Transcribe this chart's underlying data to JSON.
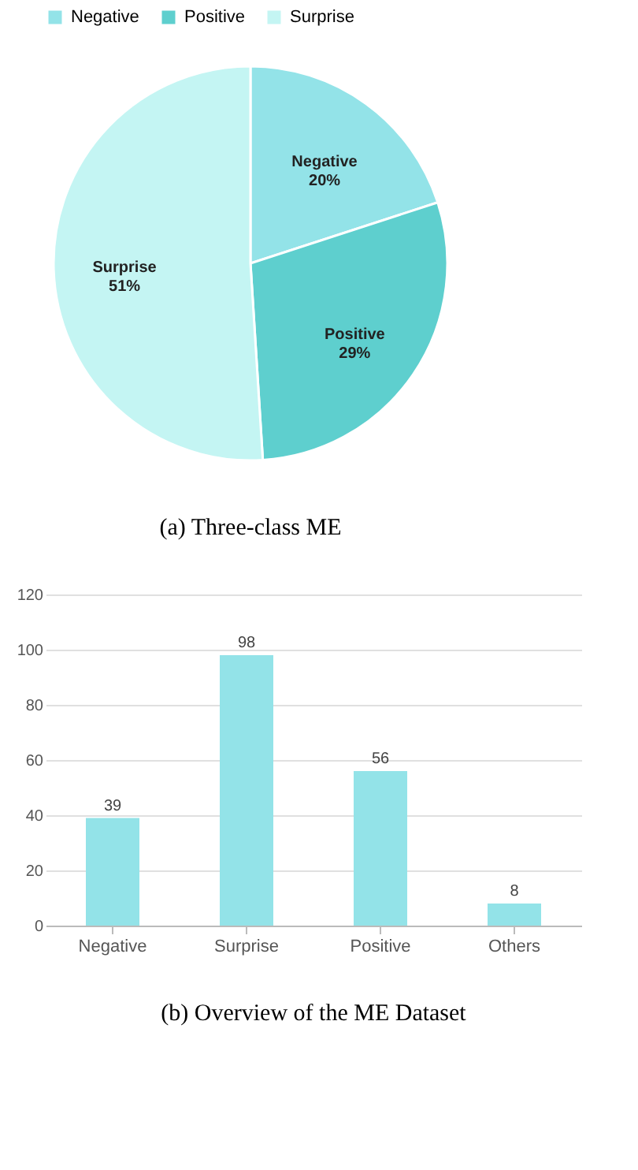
{
  "chart_data": [
    {
      "type": "pie",
      "title": "(a) Three-class ME",
      "categories": [
        "Negative",
        "Positive",
        "Surprise"
      ],
      "values": [
        20,
        29,
        51
      ],
      "colors": [
        "#93e3e8",
        "#5ecfce",
        "#c4f5f3"
      ],
      "value_labels": [
        "20%",
        "29%",
        "51%"
      ],
      "legend": "top"
    },
    {
      "type": "bar",
      "title": "(b) Overview of the ME Dataset",
      "categories": [
        "Negative",
        "Surprise",
        "Positive",
        "Others"
      ],
      "values": [
        39,
        98,
        56,
        8
      ],
      "color": "#93e3e8",
      "ylim": [
        0,
        120
      ],
      "yticks": [
        0,
        20,
        40,
        60,
        80,
        100,
        120
      ],
      "grid": "y",
      "data_labels": true
    }
  ]
}
